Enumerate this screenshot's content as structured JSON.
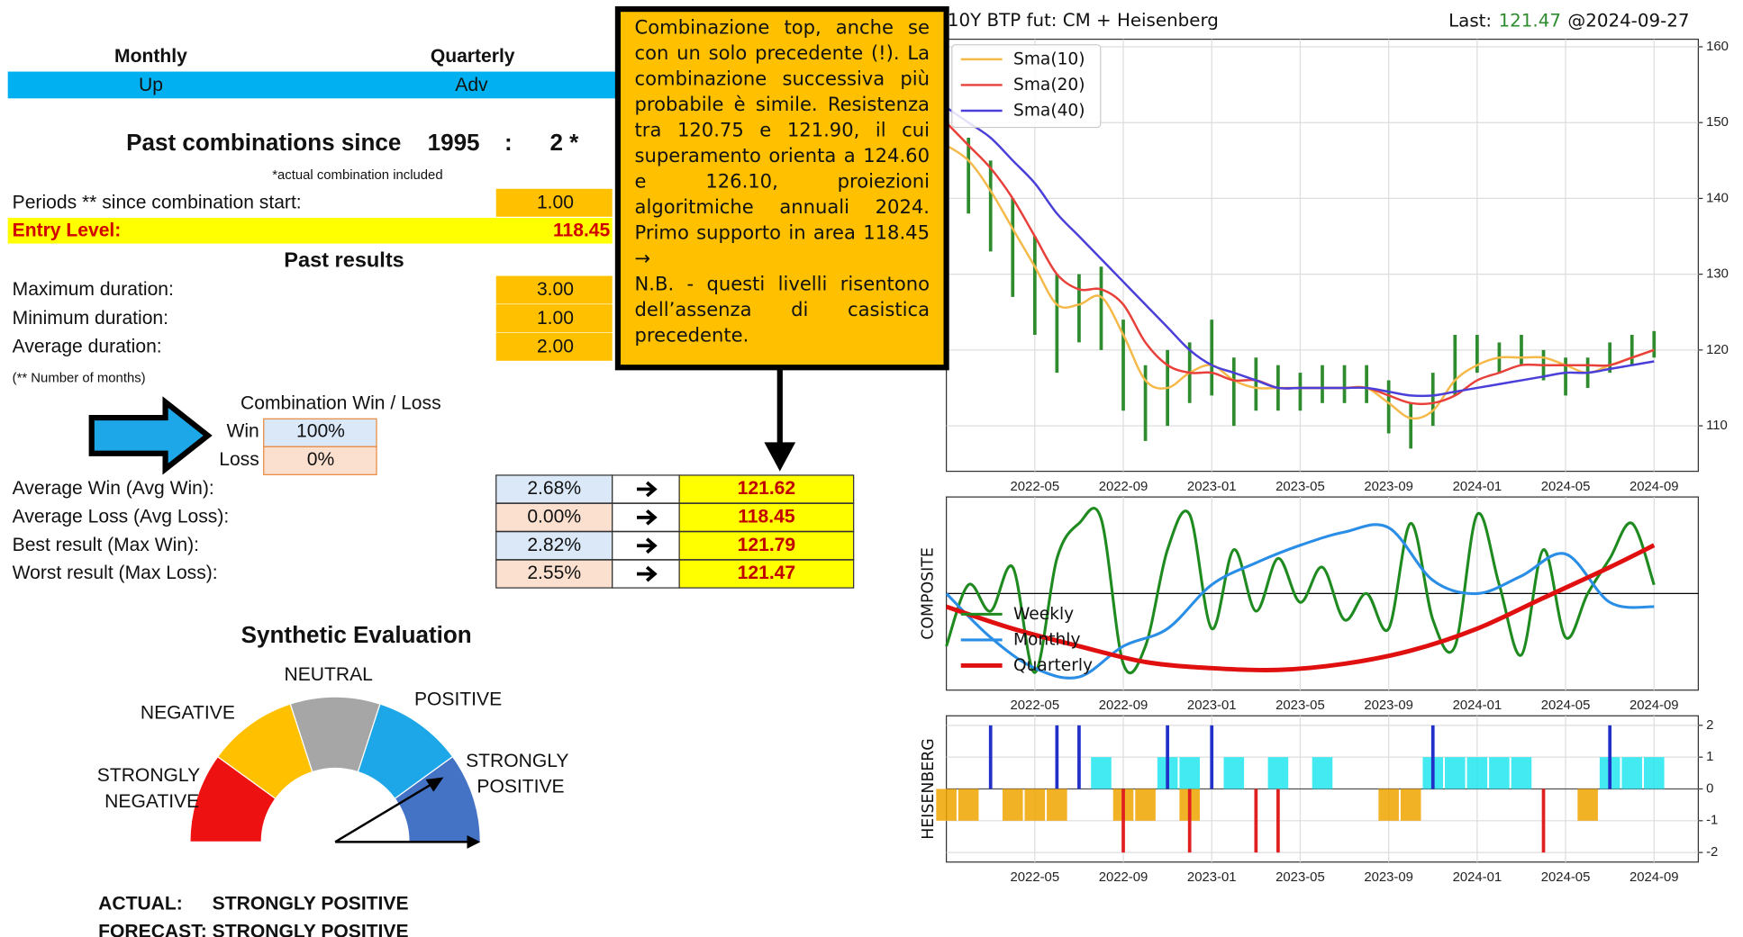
{
  "header": {
    "columns": [
      "Monthly",
      "Quarterly"
    ],
    "values": [
      "Up",
      "Adv"
    ]
  },
  "past_combinations": {
    "label": "Past combinations since",
    "year": "1995",
    "separator": ":",
    "count": "2 *",
    "note": "*actual combination included"
  },
  "periods": {
    "label": "Periods ** since combination start:",
    "value": "1.00"
  },
  "entry_level": {
    "label": "Entry Level:",
    "value": "118.45"
  },
  "past_results": {
    "title": "Past results",
    "rows": [
      [
        "Maximum duration:",
        "3.00"
      ],
      [
        "Minimum duration:",
        "1.00"
      ],
      [
        "Average duration:",
        "2.00"
      ]
    ],
    "note": "(** Number of months)"
  },
  "win_loss": {
    "title": "Combination Win / Loss",
    "rows": [
      [
        "Win",
        "100%"
      ],
      [
        "Loss",
        "0%"
      ]
    ]
  },
  "results": {
    "rows": [
      [
        "Average Win (Avg Win):",
        "2.68%",
        "121.62"
      ],
      [
        "Average Loss (Avg Loss):",
        "0.00%",
        "118.45"
      ],
      [
        "Best result (Max Win):",
        "2.82%",
        "121.79"
      ],
      [
        "Worst result (Max Loss):",
        "2.55%",
        "121.47"
      ]
    ]
  },
  "evaluation": {
    "title": "Synthetic Evaluation",
    "levels": [
      "STRONGLY NEGATIVE",
      "NEGATIVE",
      "NEUTRAL",
      "POSITIVE",
      "STRONGLY POSITIVE"
    ],
    "actual_label": "ACTUAL:",
    "actual": "STRONGLY POSITIVE",
    "forecast_label": "FORECAST:",
    "forecast": "STRONGLY POSITIVE"
  },
  "comment": {
    "paragraphs": [
      "Combinazione top, anche se con un solo precedente (!). La combinazione successiva più probabile è simile. Resistenza tra 120.75 e 121.90, il cui superamento orienta a 124.60 e 126.10, proiezioni algoritmiche annuali 2024. Primo supporto in area 118.45 →",
      "N.B. - questi livelli risentono dell’assenza di casistica precedente."
    ]
  },
  "charts": [
    {
      "type": "ohlc",
      "title": "10Y BTP fut: CM + Heisenberg",
      "last_label": "Last:",
      "last_value": "121.47",
      "last_date": "@2024-09-27",
      "x": [
        "2022-01",
        "2022-02",
        "2022-03",
        "2022-04",
        "2022-05",
        "2022-06",
        "2022-07",
        "2022-08",
        "2022-09",
        "2022-10",
        "2022-11",
        "2022-12",
        "2023-01",
        "2023-02",
        "2023-03",
        "2023-04",
        "2023-05",
        "2023-06",
        "2023-07",
        "2023-08",
        "2023-09",
        "2023-10",
        "2023-11",
        "2023-12",
        "2024-01",
        "2024-02",
        "2024-03",
        "2024-04",
        "2024-05",
        "2024-06",
        "2024-07",
        "2024-08",
        "2024-09"
      ],
      "high": [
        150,
        148,
        145,
        140,
        135,
        130,
        130,
        131,
        124,
        118,
        120,
        121,
        124,
        119,
        119,
        118,
        117,
        118,
        118,
        118,
        116,
        113,
        117,
        122,
        122,
        121,
        122,
        120,
        119,
        119,
        121,
        122,
        122.5
      ],
      "low": [
        143,
        138,
        133,
        127,
        122,
        117,
        121,
        120,
        112,
        108,
        110,
        113,
        114,
        110,
        112,
        112,
        112,
        113,
        113,
        113,
        109,
        107,
        110,
        114,
        117,
        117,
        118,
        116,
        114,
        115,
        117,
        118,
        119
      ],
      "candle_color": "#2e8b2e",
      "series": [
        {
          "name": "Sma(10)",
          "color": "#f5b94a",
          "values": [
            147,
            145,
            141,
            136,
            131,
            126,
            126,
            127,
            122,
            116,
            115,
            117,
            118,
            116,
            115,
            115,
            115,
            115,
            115,
            115,
            113,
            111,
            112,
            116,
            118,
            119,
            119,
            119,
            118,
            117,
            118,
            119,
            120
          ]
        },
        {
          "name": "Sma(20)",
          "color": "#e8403a",
          "values": [
            150,
            147,
            144,
            140,
            135,
            130,
            128,
            128,
            126,
            121,
            118,
            117,
            117,
            116,
            116,
            115,
            115,
            115,
            115,
            115,
            114,
            113,
            113,
            114,
            116,
            117,
            118,
            118,
            118,
            118,
            118,
            119,
            120
          ]
        },
        {
          "name": "Sma(40)",
          "color": "#4a3fd8",
          "values": [
            152,
            150,
            148,
            145,
            142,
            138,
            135,
            132,
            129,
            126,
            123,
            120,
            118,
            117,
            116,
            115,
            115,
            115,
            115,
            115,
            114.5,
            114,
            114,
            114.5,
            115,
            115.5,
            116,
            116.5,
            117,
            117,
            117.5,
            118,
            118.5
          ]
        }
      ],
      "xlim": [
        "2022-01",
        "2024-11"
      ],
      "xticks": [
        "2022-05",
        "2022-09",
        "2023-01",
        "2023-05",
        "2023-09",
        "2024-01",
        "2024-05",
        "2024-09"
      ],
      "ylim": [
        104,
        161
      ],
      "yticks": [
        110,
        120,
        130,
        140,
        150,
        160
      ],
      "grid": true,
      "legend": "upper left"
    },
    {
      "type": "line",
      "ylabel": "COMPOSITE",
      "series": [
        {
          "name": "Weekly",
          "color": "#1f8a1f",
          "x": [
            "2022-01",
            "2022-02",
            "2022-03",
            "2022-04",
            "2022-05",
            "2022-06",
            "2022-07",
            "2022-08",
            "2022-09",
            "2022-10",
            "2022-11",
            "2022-12",
            "2023-01",
            "2023-02",
            "2023-03",
            "2023-04",
            "2023-05",
            "2023-06",
            "2023-07",
            "2023-08",
            "2023-09",
            "2023-10",
            "2023-11",
            "2023-12",
            "2024-01",
            "2024-02",
            "2024-03",
            "2024-04",
            "2024-05",
            "2024-06",
            "2024-07",
            "2024-08",
            "2024-09"
          ],
          "values": [
            -0.6,
            0.1,
            -0.2,
            0.3,
            -0.9,
            0.4,
            0.8,
            0.85,
            -0.8,
            -0.6,
            0.5,
            0.9,
            -0.4,
            0.5,
            -0.2,
            0.4,
            -0.1,
            0.3,
            -0.3,
            0.0,
            -0.4,
            0.8,
            -0.3,
            -0.6,
            0.9,
            0.1,
            -0.7,
            0.5,
            -0.5,
            0.0,
            0.4,
            0.8,
            0.1
          ]
        },
        {
          "name": "Monthly",
          "color": "#2a8ee6",
          "x": [
            "2022-01",
            "2022-03",
            "2022-05",
            "2022-07",
            "2022-09",
            "2022-11",
            "2023-01",
            "2023-03",
            "2023-05",
            "2023-07",
            "2023-09",
            "2023-11",
            "2024-01",
            "2024-03",
            "2024-05",
            "2024-07",
            "2024-09"
          ],
          "values": [
            0.0,
            -0.5,
            -0.85,
            -0.95,
            -0.6,
            -0.4,
            0.1,
            0.35,
            0.55,
            0.7,
            0.75,
            0.15,
            0.0,
            0.2,
            0.45,
            -0.1,
            -0.15
          ]
        },
        {
          "name": "Quarterly",
          "color": "#e01010",
          "x": [
            "2022-01",
            "2022-04",
            "2022-07",
            "2022-10",
            "2023-01",
            "2023-04",
            "2023-07",
            "2023-10",
            "2024-01",
            "2024-04",
            "2024-07",
            "2024-09"
          ],
          "values": [
            -0.15,
            -0.4,
            -0.6,
            -0.78,
            -0.85,
            -0.87,
            -0.8,
            -0.65,
            -0.4,
            -0.05,
            0.3,
            0.55
          ]
        }
      ],
      "xlim": [
        "2022-01",
        "2024-11"
      ],
      "xticks": [
        "2022-05",
        "2022-09",
        "2023-01",
        "2023-05",
        "2023-09",
        "2024-01",
        "2024-05",
        "2024-09"
      ],
      "ylim": [
        -1.1,
        1.1
      ],
      "grid": true,
      "legend": "lower left"
    },
    {
      "type": "bar",
      "ylabel": "HEISENBERG",
      "series": [
        {
          "color": "#f0a500",
          "x": [
            "2022-01",
            "2022-02",
            "2022-04",
            "2022-05",
            "2022-06",
            "2022-09",
            "2022-10",
            "2022-12",
            "2023-09",
            "2023-10",
            "2024-06"
          ],
          "values": [
            -1,
            -1,
            -1,
            -1,
            -1,
            -1,
            -1,
            -1,
            -1,
            -1,
            -1
          ]
        },
        {
          "color": "#22e6ee",
          "x": [
            "2022-08",
            "2022-11",
            "2022-12",
            "2023-02",
            "2023-04",
            "2023-06",
            "2023-11",
            "2023-12",
            "2024-01",
            "2024-02",
            "2024-03",
            "2024-07",
            "2024-08",
            "2024-09"
          ],
          "values": [
            1,
            1,
            1,
            1,
            1,
            1,
            1,
            1,
            1,
            1,
            1,
            1,
            1,
            1
          ]
        },
        {
          "color": "#2030c8",
          "x": [
            "2022-03",
            "2022-06",
            "2022-07",
            "2022-11",
            "2023-01",
            "2023-11",
            "2024-07"
          ],
          "values": [
            2,
            2,
            2,
            2,
            2,
            2,
            2
          ]
        },
        {
          "color": "#e02020",
          "x": [
            "2022-09",
            "2022-12",
            "2023-03",
            "2023-04",
            "2024-04"
          ],
          "values": [
            -2,
            -2,
            -2,
            -2,
            -2
          ]
        }
      ],
      "xlim": [
        "2022-01",
        "2024-11"
      ],
      "xticks": [
        "2022-05",
        "2022-09",
        "2023-01",
        "2023-05",
        "2023-09",
        "2024-01",
        "2024-05",
        "2024-09"
      ],
      "ylim": [
        -2.3,
        2.3
      ],
      "yticks": [
        -2,
        -1,
        0,
        1,
        2
      ],
      "grid": true
    }
  ]
}
